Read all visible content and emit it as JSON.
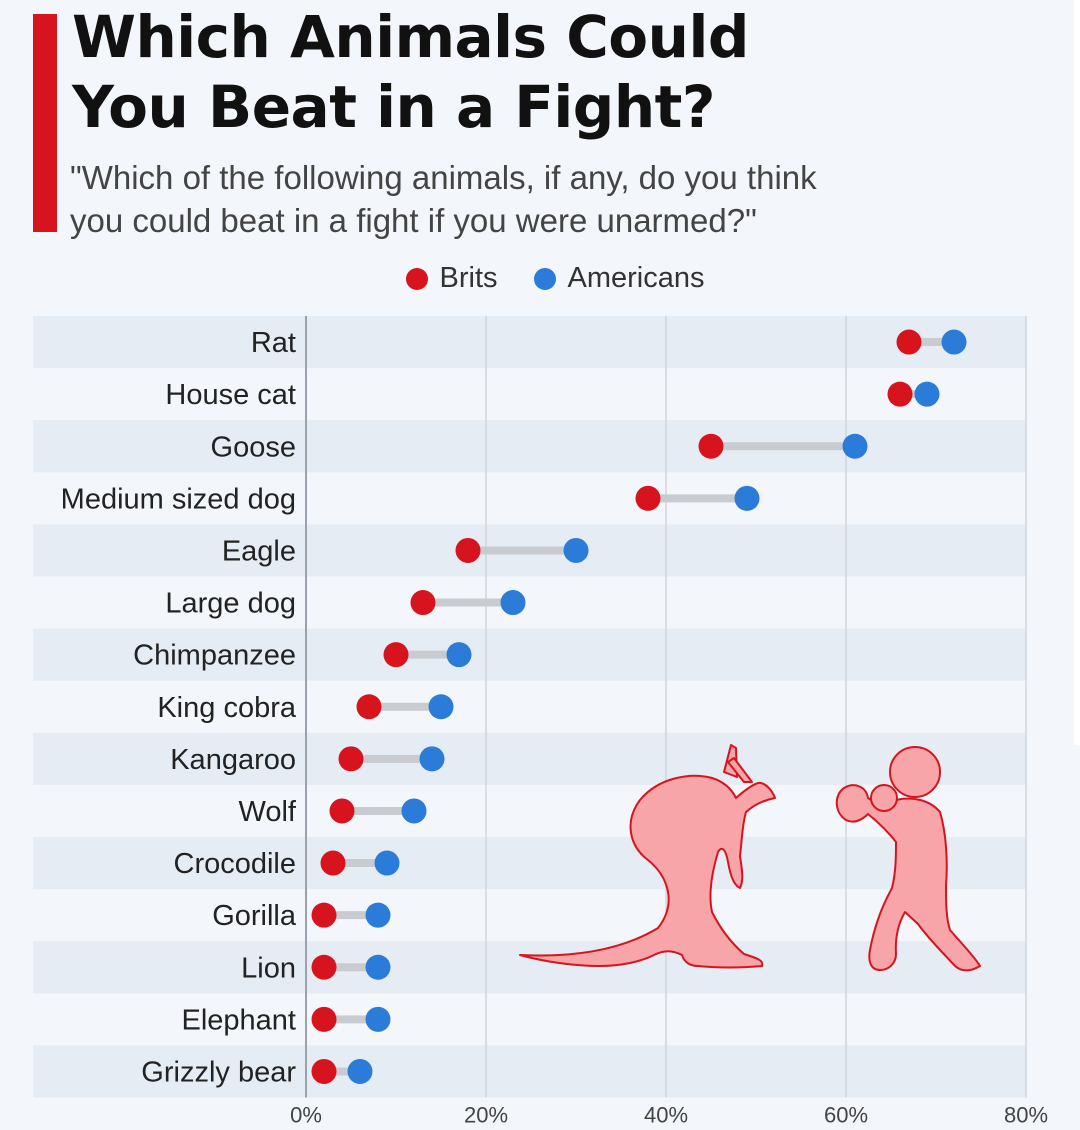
{
  "title_line1": "Which Animals Could",
  "title_line2": "You Beat in a Fight?",
  "subtitle_line1": "\"Which of the following animals, if any, do you think",
  "subtitle_line2": "you could beat in a fight if you were unarmed?\"",
  "colors": {
    "brits": "#d7141e",
    "americans": "#2b7bd9",
    "accent": "#d7141e",
    "illustration": "#f7a5a8"
  },
  "chart_data": {
    "type": "dumbbell",
    "categories": [
      "Rat",
      "House cat",
      "Goose",
      "Medium sized dog",
      "Eagle",
      "Large dog",
      "Chimpanzee",
      "King cobra",
      "Kangaroo",
      "Wolf",
      "Crocodile",
      "Gorilla",
      "Lion",
      "Elephant",
      "Grizzly bear"
    ],
    "series": [
      {
        "name": "Brits",
        "color": "#d7141e",
        "values": [
          67,
          66,
          45,
          38,
          18,
          13,
          10,
          7,
          5,
          4,
          3,
          2,
          2,
          2,
          2
        ]
      },
      {
        "name": "Americans",
        "color": "#2b7bd9",
        "values": [
          72,
          69,
          61,
          49,
          30,
          23,
          17,
          15,
          14,
          12,
          9,
          8,
          8,
          8,
          6
        ]
      }
    ],
    "xlim": [
      0,
      80
    ],
    "x_ticks": [
      "0%",
      "20%",
      "40%",
      "60%",
      "80%"
    ],
    "x_tick_values": [
      0,
      20,
      40,
      60,
      80
    ],
    "grid": true,
    "legend_position": "top-center"
  }
}
